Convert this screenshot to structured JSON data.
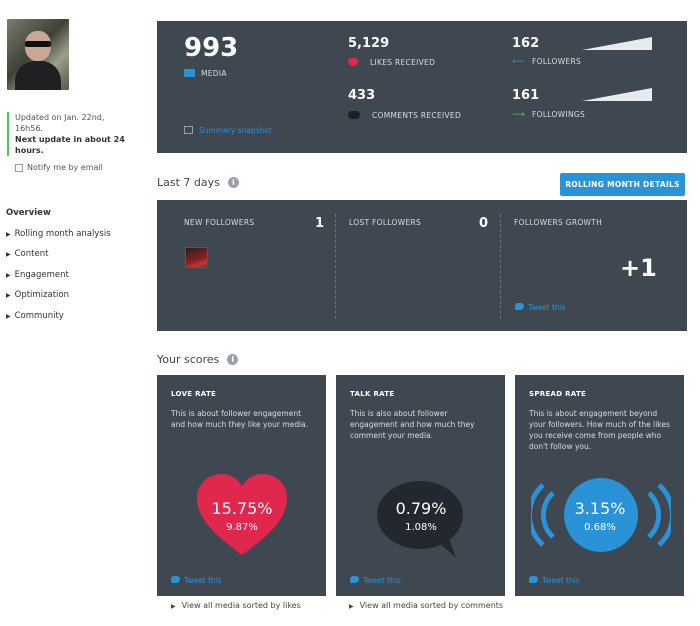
{
  "sidebar": {
    "updated_line1": "Updated on Jan. 22nd,",
    "updated_line2": "16h56.",
    "next_update": "Next update in about 24 hours.",
    "notify_label": "Notify me by email",
    "nav": [
      {
        "label": "Overview",
        "selected": true
      },
      {
        "label": "Rolling month analysis"
      },
      {
        "label": "Content"
      },
      {
        "label": "Engagement"
      },
      {
        "label": "Optimization"
      },
      {
        "label": "Community"
      }
    ]
  },
  "summary": {
    "media_count": "993",
    "media_label": "MEDIA",
    "likes_count": "5,129",
    "likes_label": "LIKES RECEIVED",
    "comments_count": "433",
    "comments_label": "COMMENTS RECEIVED",
    "followers_count": "162",
    "followers_label": "FOLLOWERS",
    "followings_count": "161",
    "followings_label": "FOLLOWINGS",
    "snapshot_link": "Summary snapshot",
    "icons": {
      "media": "camera-icon",
      "likes": "heart-icon",
      "comments": "speech-bubble-icon",
      "followers": "arrow-left-icon",
      "followings": "arrow-right-icon",
      "snapshot": "document-icon"
    },
    "colors": {
      "accent": "#2a93d8",
      "heart": "#e0284f",
      "panel": "#3f4750",
      "followings_arrow": "#4ac55b"
    }
  },
  "last7": {
    "title": "Last 7 days",
    "rolling_button": "ROLLING MONTH DETAILS",
    "new_followers_label": "NEW FOLLOWERS",
    "new_followers_value": "1",
    "lost_followers_label": "LOST FOLLOWERS",
    "lost_followers_value": "0",
    "growth_label": "FOLLOWERS GROWTH",
    "growth_value": "+1",
    "tweet": "Tweet this"
  },
  "scores": {
    "title": "Your scores",
    "cards": [
      {
        "title": "LOVE RATE",
        "desc": "This is about follower engagement and how much they like your media.",
        "primary": "15.75%",
        "secondary": "9.87%",
        "tweet": "Tweet this",
        "icon": "heart-shape",
        "color": "#e0284f"
      },
      {
        "title": "TALK RATE",
        "desc": "This is also about follower engagement and how much they comment your media.",
        "primary": "0.79%",
        "secondary": "1.08%",
        "tweet": "Tweet this",
        "icon": "speech-bubble-shape",
        "color": "#22282d"
      },
      {
        "title": "SPREAD RATE",
        "desc": "This is about engagement beyond your followers. How much of the likes you receive come from people who don't follow you.",
        "primary": "3.15%",
        "secondary": "0.68%",
        "tweet": "Tweet this",
        "icon": "broadcast-circle-shape",
        "color": "#2a93d8"
      }
    ],
    "footer_links": [
      "View all media sorted by likes",
      "View all media sorted by comments"
    ]
  }
}
